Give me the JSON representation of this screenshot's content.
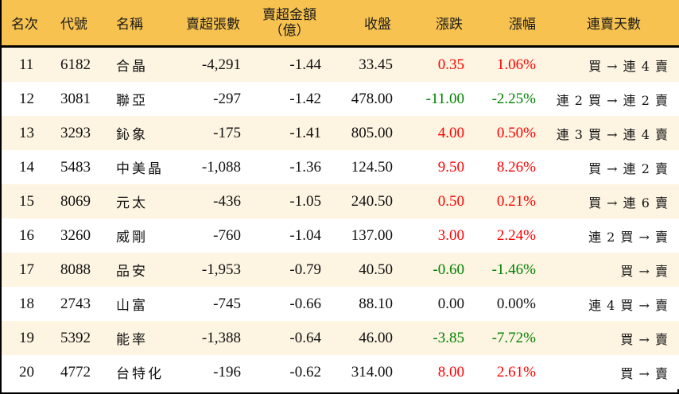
{
  "colors": {
    "header_bg": "#f7c24f",
    "row_odd_bg": "#fdf4e1",
    "row_even_bg": "#ffffff",
    "up": "#ff0000",
    "down": "#008000",
    "flat": "#111111"
  },
  "table": {
    "headers": {
      "rank": "名次",
      "code": "代號",
      "name": "名稱",
      "net_sell_lots": "賣超張數",
      "net_sell_amount_line1": "賣超金額",
      "net_sell_amount_line2": "（億）",
      "close": "收盤",
      "change": "漲跌",
      "change_pct": "漲幅",
      "streak": "連賣天數"
    },
    "rows": [
      {
        "rank": "11",
        "code": "6182",
        "name": "合晶",
        "net_sell_lots": "-4,291",
        "net_sell_amount": "-1.44",
        "close": "33.45",
        "change": "0.35",
        "change_pct": "1.06%",
        "direction": "up",
        "streak": "買 → 連 4 賣"
      },
      {
        "rank": "12",
        "code": "3081",
        "name": "聯亞",
        "net_sell_lots": "-297",
        "net_sell_amount": "-1.42",
        "close": "478.00",
        "change": "-11.00",
        "change_pct": "-2.25%",
        "direction": "down",
        "streak": "連 2 買 → 連 2 賣"
      },
      {
        "rank": "13",
        "code": "3293",
        "name": "鈊象",
        "net_sell_lots": "-175",
        "net_sell_amount": "-1.41",
        "close": "805.00",
        "change": "4.00",
        "change_pct": "0.50%",
        "direction": "up",
        "streak": "連 3 買 → 連 4 賣"
      },
      {
        "rank": "14",
        "code": "5483",
        "name": "中美晶",
        "net_sell_lots": "-1,088",
        "net_sell_amount": "-1.36",
        "close": "124.50",
        "change": "9.50",
        "change_pct": "8.26%",
        "direction": "up",
        "streak": "買 → 連 2 賣"
      },
      {
        "rank": "15",
        "code": "8069",
        "name": "元太",
        "net_sell_lots": "-436",
        "net_sell_amount": "-1.05",
        "close": "240.50",
        "change": "0.50",
        "change_pct": "0.21%",
        "direction": "up",
        "streak": "買 → 連 6 賣"
      },
      {
        "rank": "16",
        "code": "3260",
        "name": "威剛",
        "net_sell_lots": "-760",
        "net_sell_amount": "-1.04",
        "close": "137.00",
        "change": "3.00",
        "change_pct": "2.24%",
        "direction": "up",
        "streak": "連 2 買 → 賣"
      },
      {
        "rank": "17",
        "code": "8088",
        "name": "品安",
        "net_sell_lots": "-1,953",
        "net_sell_amount": "-0.79",
        "close": "40.50",
        "change": "-0.60",
        "change_pct": "-1.46%",
        "direction": "down",
        "streak": "買 → 賣"
      },
      {
        "rank": "18",
        "code": "2743",
        "name": "山富",
        "net_sell_lots": "-745",
        "net_sell_amount": "-0.66",
        "close": "88.10",
        "change": "0.00",
        "change_pct": "0.00%",
        "direction": "flat",
        "streak": "連 4 買 → 賣"
      },
      {
        "rank": "19",
        "code": "5392",
        "name": "能率",
        "net_sell_lots": "-1,388",
        "net_sell_amount": "-0.64",
        "close": "46.00",
        "change": "-3.85",
        "change_pct": "-7.72%",
        "direction": "down",
        "streak": "買 → 賣"
      },
      {
        "rank": "20",
        "code": "4772",
        "name": "台特化",
        "net_sell_lots": "-196",
        "net_sell_amount": "-0.62",
        "close": "314.00",
        "change": "8.00",
        "change_pct": "2.61%",
        "direction": "up",
        "streak": "買 → 賣"
      }
    ]
  }
}
